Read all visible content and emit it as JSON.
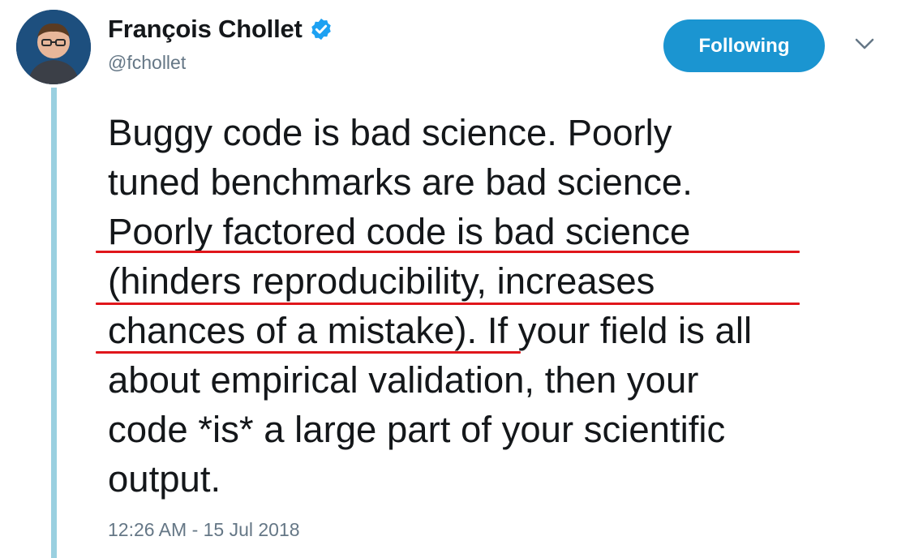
{
  "user": {
    "display_name": "François Chollet",
    "handle": "@fchollet",
    "verified": true
  },
  "follow_button": {
    "label": "Following"
  },
  "menu": {
    "icon": "chevron-down-icon"
  },
  "tweet": {
    "text": "Buggy code is bad science. Poorly\ntuned benchmarks are bad science.\nPoorly factored code is bad science\n(hinders reproducibility, increases\nchances of a mistake). If your field is all\nabout empirical validation, then your\ncode *is* a large part of your scientific\noutput.",
    "timestamp": "12:26 AM - 15 Jul 2018"
  },
  "colors": {
    "accent": "#1b95d1",
    "annotation": "#e0161b",
    "thread_line": "#9ad0e0",
    "secondary_text": "#657786"
  }
}
